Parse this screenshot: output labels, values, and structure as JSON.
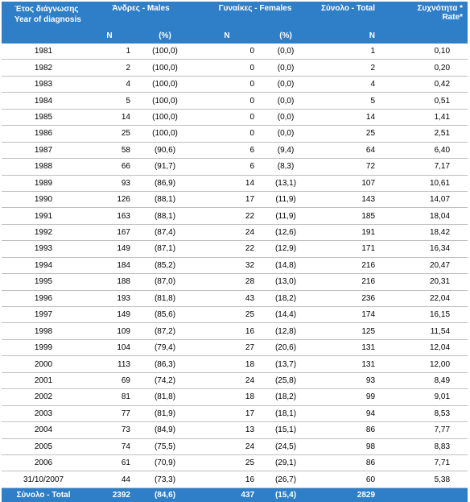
{
  "headers": {
    "year": [
      "Έτος διάγνωσης",
      "Year of diagnosis"
    ],
    "males": "Άνδρες - Males",
    "females": "Γυναίκες - Females",
    "total": "Σύνολο - Total",
    "rate": [
      "Συχνότητα *",
      "Rate*"
    ],
    "sub": {
      "n": "N",
      "pct": "(%)"
    }
  },
  "rows": [
    [
      "1981",
      "1",
      "(100,0)",
      "0",
      "(0,0)",
      "1",
      "0,10"
    ],
    [
      "1982",
      "2",
      "(100,0)",
      "0",
      "(0,0)",
      "2",
      "0,20"
    ],
    [
      "1983",
      "4",
      "(100,0)",
      "0",
      "(0,0)",
      "4",
      "0,42"
    ],
    [
      "1984",
      "5",
      "(100,0)",
      "0",
      "(0,0)",
      "5",
      "0,51"
    ],
    [
      "1985",
      "14",
      "(100,0)",
      "0",
      "(0,0)",
      "14",
      "1,41"
    ],
    [
      "1986",
      "25",
      "(100,0)",
      "0",
      "(0,0)",
      "25",
      "2,51"
    ],
    [
      "1987",
      "58",
      "(90,6)",
      "6",
      "(9,4)",
      "64",
      "6,40"
    ],
    [
      "1988",
      "66",
      "(91,7)",
      "6",
      "(8,3)",
      "72",
      "7,17"
    ],
    [
      "1989",
      "93",
      "(86,9)",
      "14",
      "(13,1)",
      "107",
      "10,61"
    ],
    [
      "1990",
      "126",
      "(88,1)",
      "17",
      "(11,9)",
      "143",
      "14,07"
    ],
    [
      "1991",
      "163",
      "(88,1)",
      "22",
      "(11,9)",
      "185",
      "18,04"
    ],
    [
      "1992",
      "167",
      "(87,4)",
      "24",
      "(12,6)",
      "191",
      "18,42"
    ],
    [
      "1993",
      "149",
      "(87,1)",
      "22",
      "(12,9)",
      "171",
      "16,34"
    ],
    [
      "1994",
      "184",
      "(85,2)",
      "32",
      "(14,8)",
      "216",
      "20,47"
    ],
    [
      "1995",
      "188",
      "(87,0)",
      "28",
      "(13,0)",
      "216",
      "20,31"
    ],
    [
      "1996",
      "193",
      "(81,8)",
      "43",
      "(18,2)",
      "236",
      "22,04"
    ],
    [
      "1997",
      "149",
      "(85,6)",
      "25",
      "(14,4)",
      "174",
      "16,15"
    ],
    [
      "1998",
      "109",
      "(87,2)",
      "16",
      "(12,8)",
      "125",
      "11,54"
    ],
    [
      "1999",
      "104",
      "(79,4)",
      "27",
      "(20,6)",
      "131",
      "12,04"
    ],
    [
      "2000",
      "113",
      "(86,3)",
      "18",
      "(13,7)",
      "131",
      "12,00"
    ],
    [
      "2001",
      "69",
      "(74,2)",
      "24",
      "(25,8)",
      "93",
      "8,49"
    ],
    [
      "2002",
      "81",
      "(81,8)",
      "18",
      "(18,2)",
      "99",
      "9,01"
    ],
    [
      "2003",
      "77",
      "(81,9)",
      "17",
      "(18,1)",
      "94",
      "8,53"
    ],
    [
      "2004",
      "73",
      "(84,9)",
      "13",
      "(15,1)",
      "86",
      "7,77"
    ],
    [
      "2005",
      "74",
      "(75,5)",
      "24",
      "(24,5)",
      "98",
      "8,83"
    ],
    [
      "2006",
      "61",
      "(70,9)",
      "25",
      "(29,1)",
      "86",
      "7,71"
    ],
    [
      "31/10/2007",
      "44",
      "(73,3)",
      "16",
      "(26,7)",
      "60",
      "5,38"
    ]
  ],
  "footer": [
    "Σύνολο - Total",
    "2392",
    "(84,6)",
    "437",
    "(15,4)",
    "2829",
    ""
  ],
  "colors": {
    "header_bg": "#2f7ec8",
    "header_text": "#ffffff",
    "row_rule": "#bfbfbf"
  }
}
